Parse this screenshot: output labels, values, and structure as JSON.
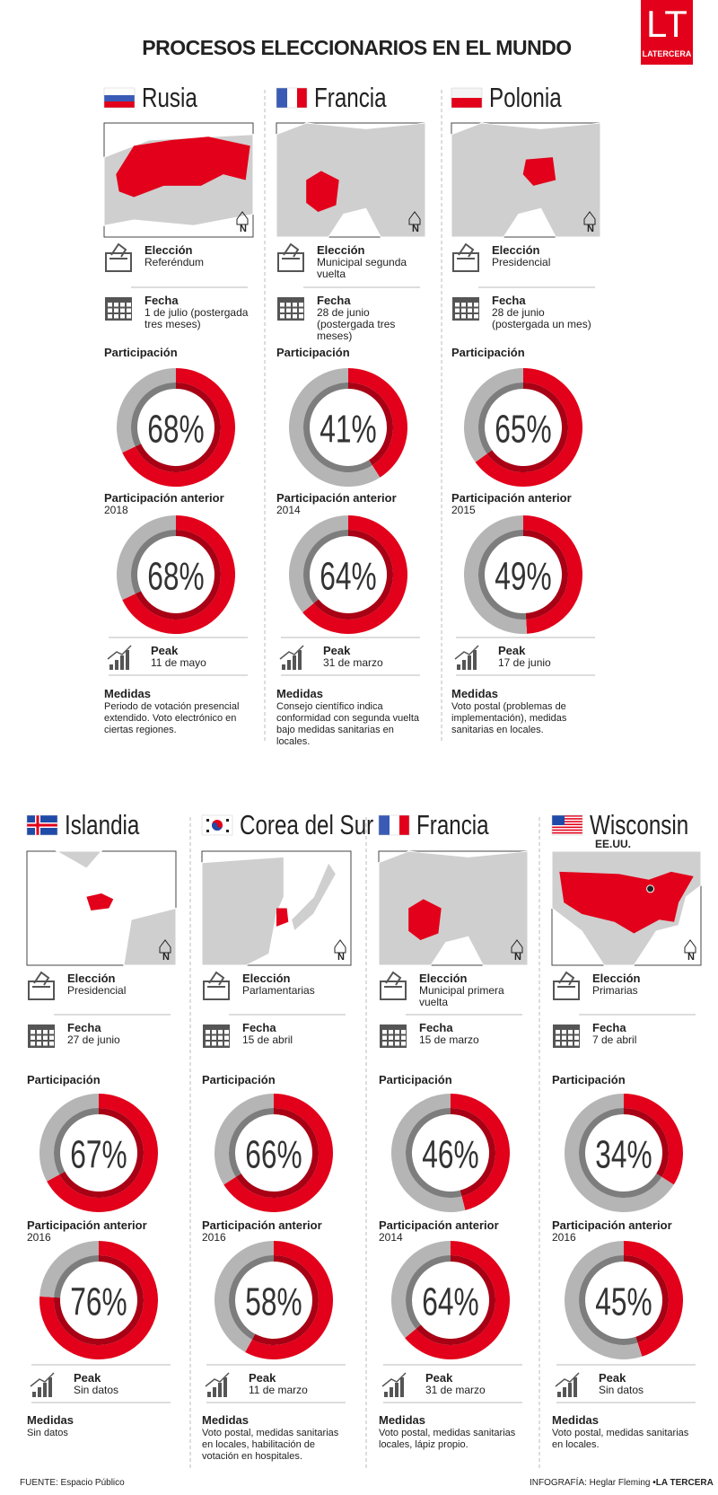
{
  "header": {
    "title": "PROCESOS ELECCIONARIOS EN EL MUNDO",
    "logo": "LT",
    "logo_sub": "LATERCERA"
  },
  "labels": {
    "election": "Elección",
    "date": "Fecha",
    "participation": "Participación",
    "previous": "Participación anterior",
    "peak": "Peak",
    "measures": "Medidas",
    "north": "N"
  },
  "groups": [
    [
      {
        "name": "Rusia",
        "election": "Referéndum",
        "date": "1 de julio (postergada tres meses)",
        "participation": 68,
        "participation_text": "68%",
        "previous_year": "2018",
        "previous": 68,
        "previous_text": "68%",
        "peak": "11 de mayo",
        "measures": "Periodo de votación presencial extendido. Voto electrónico en ciertas regiones."
      },
      {
        "name": "Francia",
        "election": "Municipal segunda vuelta",
        "date": "28 de junio (postergada tres meses)",
        "participation": 41,
        "participation_text": "41%",
        "previous_year": "2014",
        "previous": 64,
        "previous_text": "64%",
        "peak": "31 de marzo",
        "measures": "Consejo científico indica conformidad con segunda vuelta bajo medidas sanitarias en locales."
      },
      {
        "name": "Polonia",
        "election": "Presidencial",
        "date": "28 de junio (postergada un mes)",
        "participation": 65,
        "participation_text": "65%",
        "previous_year": "2015",
        "previous": 49,
        "previous_text": "49%",
        "peak": "17 de junio",
        "measures": "Voto postal (problemas de implementación), medidas sanitarias en locales."
      }
    ],
    [
      {
        "name": "Islandia",
        "election": "Presidencial",
        "date": "27 de junio",
        "participation": 67,
        "participation_text": "67%",
        "previous_year": "2016",
        "previous": 76,
        "previous_text": "76%",
        "peak": "Sin datos",
        "measures": "Sin datos"
      },
      {
        "name": "Corea del Sur",
        "election": "Parlamentarias",
        "date": "15 de abril",
        "participation": 66,
        "participation_text": "66%",
        "previous_year": "2016",
        "previous": 58,
        "previous_text": "58%",
        "peak": "11 de marzo",
        "measures": "Voto postal, medidas sanitarias en locales, habilitación de votación en hospitales."
      },
      {
        "name": "Francia",
        "election": "Municipal primera vuelta",
        "date": "15 de marzo",
        "participation": 46,
        "participation_text": "46%",
        "previous_year": "2014",
        "previous": 64,
        "previous_text": "64%",
        "peak": "31 de marzo",
        "measures": "Voto postal, medidas sanitarias locales, lápiz propio."
      },
      {
        "name": "Wisconsin",
        "subtitle": "EE.UU.",
        "election": "Primarias",
        "date": "7 de abril",
        "participation": 34,
        "participation_text": "34%",
        "previous_year": "2016",
        "previous": 45,
        "previous_text": "45%",
        "peak": "Sin datos",
        "measures": "Voto postal, medidas sanitarias en locales."
      }
    ]
  ],
  "footer": {
    "source": "FUENTE: Espacio Público",
    "credit": "INFOGRAFÍA: Heglar Fleming",
    "credit_brand": "•LA TERCERA"
  }
}
